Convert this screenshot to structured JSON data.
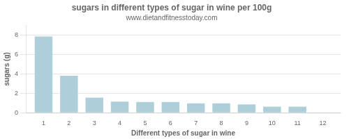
{
  "chart_data": {
    "type": "bar",
    "title": "sugars in different types of sugar in wine per 100g",
    "subtitle": "www.dietandfitnesstoday.com",
    "xlabel": "Different types of sugar in wine",
    "ylabel": "sugars (g)",
    "x": [
      1,
      2,
      3,
      4,
      5,
      6,
      7,
      8,
      9,
      10,
      11
    ],
    "values": [
      7.85,
      3.8,
      1.55,
      1.15,
      1.1,
      1.1,
      0.97,
      0.97,
      0.85,
      0.63,
      0.63
    ],
    "color": "#aecfda",
    "xlim": [
      0.3,
      12.7
    ],
    "xticks": [
      1,
      2,
      3,
      4,
      5,
      6,
      7,
      8,
      9,
      10,
      11,
      12
    ],
    "ylim": [
      0,
      9
    ],
    "yticks": [
      0,
      2,
      4,
      6,
      8
    ],
    "grid": "y"
  }
}
